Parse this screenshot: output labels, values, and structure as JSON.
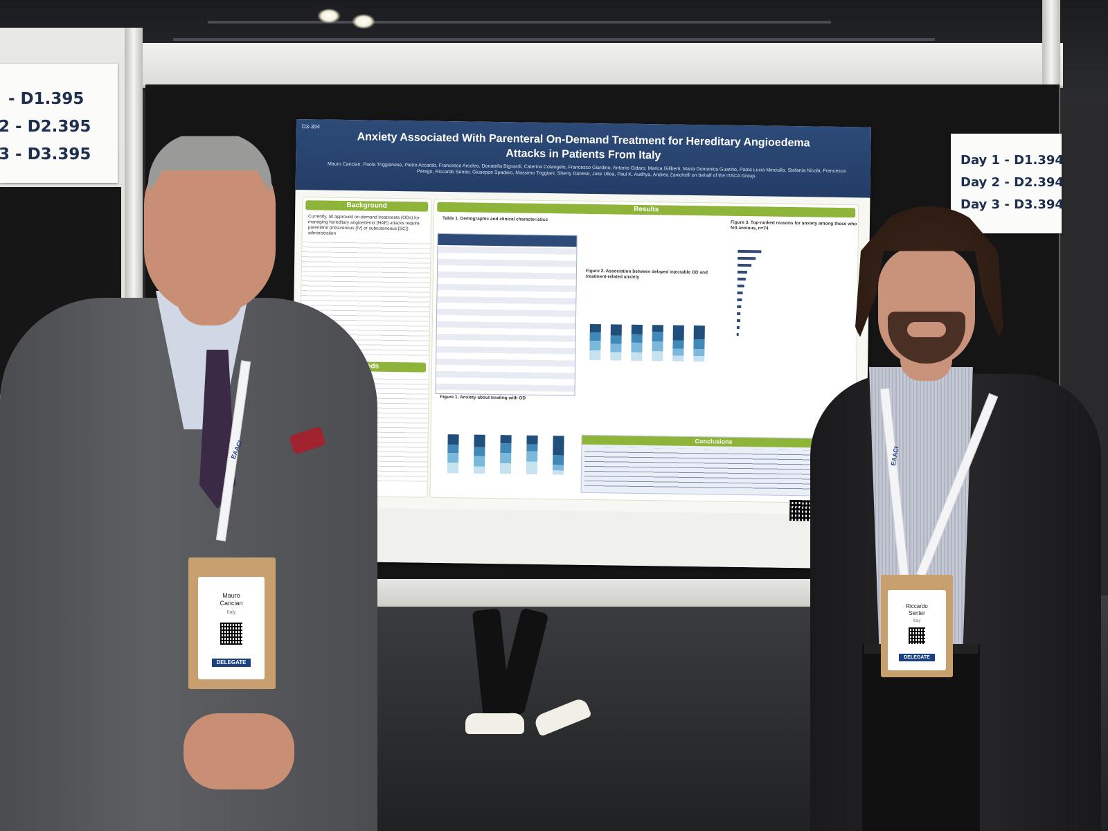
{
  "scene": {
    "description_tags": [
      "poster-session",
      "two-presenters",
      "conference-hall"
    ]
  },
  "signs": {
    "left": [
      "- D1.395",
      "2 - D2.395",
      "3 - D3.395"
    ],
    "right": [
      "Day 1 - D1.394",
      "Day 2 - D2.394",
      "Day 3 - D3.394"
    ]
  },
  "poster": {
    "code": "D3-394",
    "title": "Anxiety Associated With Parenteral On-Demand Treatment for Hereditary Angioedema Attacks in Patients From Italy",
    "authors": "Mauro Cancian, Paola Triggianese, Pietro Accardo, Francesco Arcoleo, Donatella Bignardi, Caterina Colangelo, Francesco Giardino, Antonio Gidaro, Marica Giliberti, Maria Domenica Guarino, Paola Lucia Minciullo, Stefania Nicola, Francesca Perego, Riccardo Senter, Giuseppe Spadaro, Massimo Triggiani, Sherry Danese, Julie Ulloa, Paul K. Audhya, Andrea Zanichelli on behalf of the ITACA Group.",
    "sections": {
      "background": "Background",
      "methods": "Methods",
      "results": "Results",
      "conclusions": "Conclusions"
    },
    "background_text": "Currently, all approved on-demand treatments (ODs) for managing hereditary angioedema (HAE) attacks require parenteral (intravenous [IV] or subcutaneous [SC]) administration",
    "table_title": "Table 1. Demographic and clinical characteristics",
    "figure1_title": "Figure 1. Anxiety about treating with OD",
    "figure2_title": "Figure 2. Association between delayed injectable OD and treatment-related anxiety",
    "figure3_title": "Figure 3. Top-ranked reasons for anxiety among those who felt anxious, n=74"
  },
  "badges": {
    "left": {
      "name_first": "Mauro",
      "name_last": "Cancian",
      "country": "Italy",
      "role": "DELEGATE"
    },
    "right": {
      "name_first": "Riccardo",
      "name_last": "Senter",
      "country": "Italy",
      "role": "DELEGATE"
    }
  },
  "lanyard_text": "EAACI",
  "colors": {
    "poster_header": "#2d4a78",
    "poster_accent": "#8fb43a",
    "badge_role": "#1a3f83",
    "suit_left": "#55575b",
    "suit_right": "#1d1d1f"
  }
}
